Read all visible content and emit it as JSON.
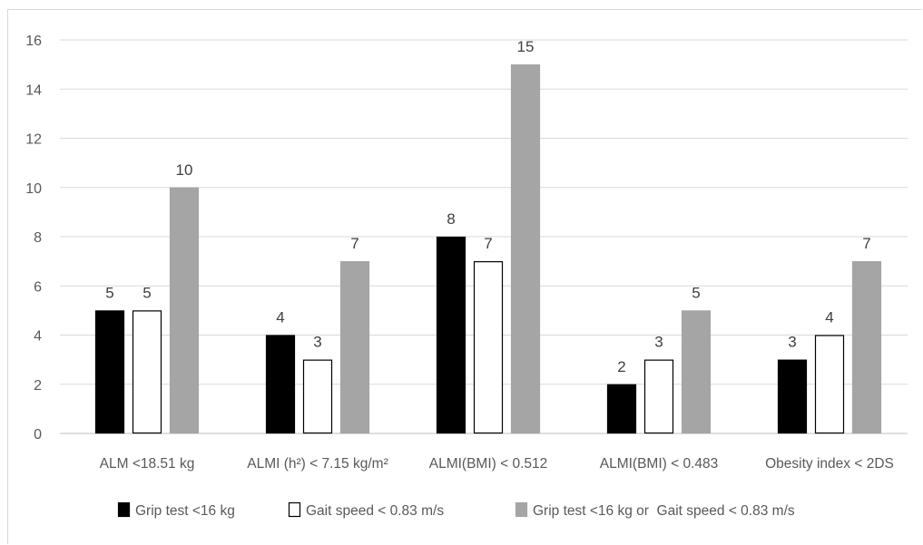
{
  "chart_data": {
    "type": "bar",
    "title": "",
    "xlabel": "",
    "ylabel": "",
    "ylim": [
      0,
      16
    ],
    "yticks": [
      0,
      2,
      4,
      6,
      8,
      10,
      12,
      14,
      16
    ],
    "grid": true,
    "legend_position": "bottom",
    "categories": [
      "ALM <18.51 kg",
      "ALMI (h²) < 7.15 kg/m²",
      "ALMI(BMI) < 0.512",
      "ALMI(BMI) < 0.483",
      "Obesity index < 2DS"
    ],
    "series": [
      {
        "name": "Grip test <16 kg",
        "color": "#000000",
        "border": "#000000",
        "values": [
          5,
          4,
          8,
          2,
          3
        ]
      },
      {
        "name": "Gait speed < 0.83 m/s",
        "color": "#ffffff",
        "border": "#000000",
        "values": [
          5,
          3,
          7,
          3,
          4
        ]
      },
      {
        "name": "Grip test <16 kg or  Gait speed < 0.83 m/s",
        "color": "#a5a5a5",
        "border": "#a5a5a5",
        "values": [
          10,
          7,
          15,
          5,
          7
        ]
      }
    ]
  }
}
